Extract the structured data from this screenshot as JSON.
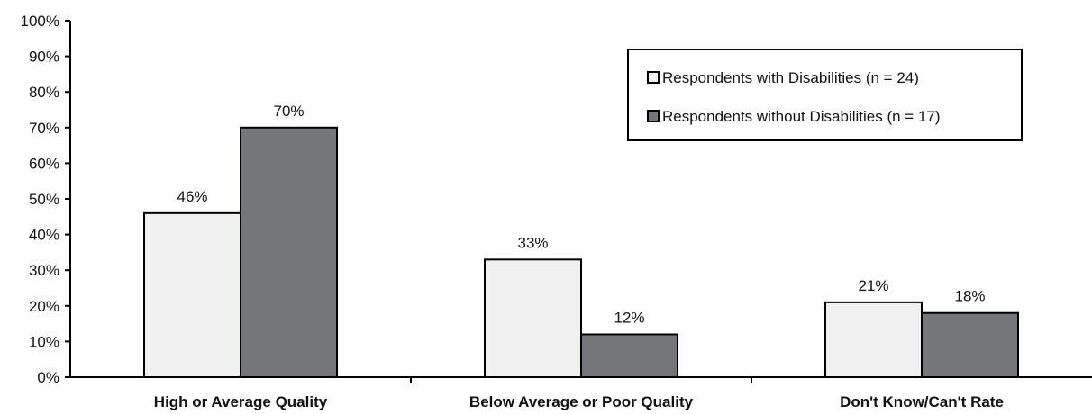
{
  "chart_data": {
    "type": "bar",
    "categories": [
      "High or Average Quality",
      "Below Average or Poor Quality",
      "Don't Know/Can't Rate"
    ],
    "series": [
      {
        "name": "Respondents with Disabilities (n = 24)",
        "values": [
          46,
          33,
          21
        ],
        "labels": [
          "46%",
          "33%",
          "21%"
        ],
        "color": "#f0f0f0"
      },
      {
        "name": "Respondents without Disabilities (n = 17)",
        "values": [
          70,
          12,
          18
        ],
        "labels": [
          "70%",
          "12%",
          "18%"
        ],
        "color": "#75767a"
      }
    ],
    "ylim": [
      0,
      100
    ],
    "yticks": [
      0,
      10,
      20,
      30,
      40,
      50,
      60,
      70,
      80,
      90,
      100
    ],
    "ytick_labels": [
      "0%",
      "10%",
      "20%",
      "30%",
      "40%",
      "50%",
      "60%",
      "70%",
      "80%",
      "90%",
      "100%"
    ],
    "legend_position": "top-right",
    "grid": false
  }
}
